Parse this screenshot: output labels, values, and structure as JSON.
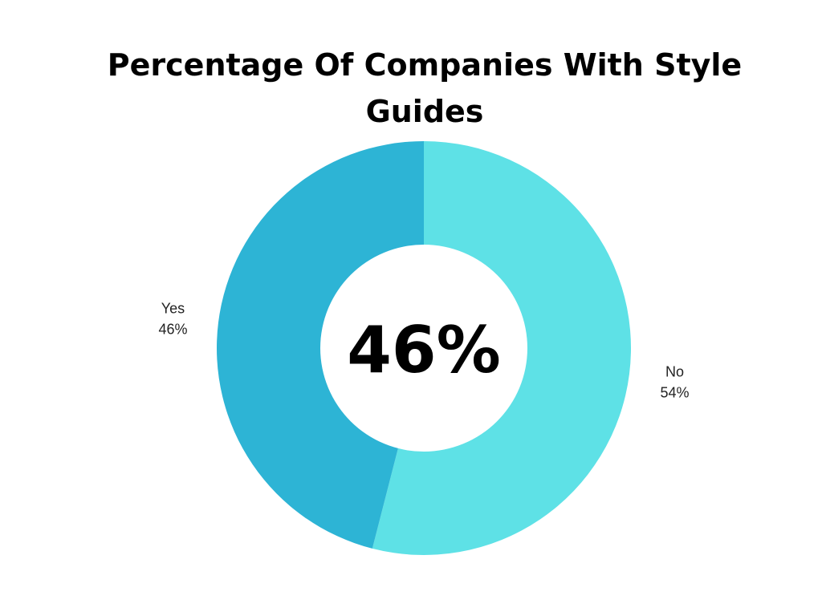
{
  "chart_data": {
    "type": "pie",
    "style": "donut",
    "title": "Percentage Of Companies With Style Guides",
    "center_label": "46%",
    "slices": [
      {
        "label": "No",
        "value": 54,
        "value_label": "54%",
        "color": "#5ee1e6"
      },
      {
        "label": "Yes",
        "value": 46,
        "value_label": "46%",
        "color": "#2db4d5"
      }
    ],
    "start": "top",
    "direction": "clockwise",
    "legend": "none"
  }
}
